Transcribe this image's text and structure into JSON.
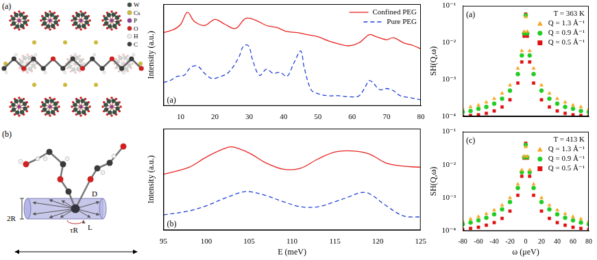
{
  "diagram": {
    "panel_a": {
      "label": "(a)",
      "atoms": [
        "W",
        "Cs",
        "P",
        "O",
        "H",
        "C"
      ]
    },
    "panel_b": {
      "label": "(b)",
      "radius": "2R",
      "diffusion": "D",
      "length": "L",
      "rotation": "τR"
    }
  },
  "chart_data": [
    {
      "type": "line",
      "panel_label": "(a)",
      "y_label": "Intensity (a.u.)",
      "xlim": [
        5,
        80
      ],
      "xticks": [
        10,
        20,
        30,
        40,
        50,
        60,
        70,
        80
      ],
      "ylim": [
        0,
        10
      ],
      "tick_labels": "x",
      "grid": false,
      "legend": "top-right",
      "series": [
        {
          "name": "Confined PEG",
          "color": "#e8221e",
          "line_style": "solid",
          "x": [
            5,
            8,
            10,
            12,
            14,
            17,
            20,
            23,
            26,
            29,
            32,
            35,
            38,
            41,
            44,
            47,
            50,
            53,
            56,
            59,
            62,
            65,
            67,
            70,
            72,
            75,
            78,
            80
          ],
          "values": [
            7.2,
            7.5,
            8.0,
            9.2,
            8.3,
            7.9,
            8.5,
            8.0,
            7.6,
            8.6,
            8.4,
            7.9,
            7.7,
            7.3,
            7.2,
            7.0,
            6.8,
            6.4,
            6.1,
            5.9,
            6.2,
            7.0,
            6.8,
            6.5,
            6.7,
            6.2,
            5.9,
            5.6
          ]
        },
        {
          "name": "Pure PEG",
          "color": "#1f3fd8",
          "line_style": "dashed",
          "x": [
            5,
            7,
            9,
            11,
            13,
            15,
            17,
            19,
            21,
            24,
            27,
            28,
            29,
            30,
            31,
            33,
            35,
            37,
            39,
            41,
            43,
            45,
            46,
            48,
            50,
            53,
            56,
            59,
            62,
            64,
            65,
            66,
            68,
            70,
            72,
            74,
            77,
            80
          ],
          "values": [
            2.3,
            2.5,
            2.9,
            3.0,
            3.8,
            3.9,
            3.2,
            2.7,
            2.8,
            3.3,
            4.8,
            5.7,
            6.0,
            5.8,
            4.5,
            3.0,
            3.6,
            3.2,
            3.3,
            2.9,
            4.2,
            5.4,
            3.8,
            1.6,
            1.2,
            1.0,
            1.0,
            0.9,
            1.0,
            2.0,
            2.5,
            2.3,
            1.6,
            1.7,
            1.5,
            1.0,
            0.8,
            0.6
          ]
        }
      ]
    },
    {
      "type": "line",
      "panel_label": "(b)",
      "y_label": "Intensity (a.u.)",
      "x_label": "E (meV)",
      "xlim": [
        95,
        125
      ],
      "xticks": [
        95,
        100,
        105,
        110,
        115,
        120,
        125
      ],
      "ylim": [
        0,
        10
      ],
      "tick_labels": "x",
      "grid": false,
      "series": [
        {
          "name": "Confined PEG",
          "color": "#e8221e",
          "line_style": "solid",
          "x": [
            95,
            98,
            100,
            102,
            103,
            105,
            107,
            109,
            111,
            113,
            115,
            117,
            119,
            121,
            123,
            125
          ],
          "values": [
            5.5,
            6.2,
            7.2,
            8.0,
            8.2,
            7.6,
            6.6,
            6.0,
            6.1,
            7.0,
            7.7,
            7.8,
            7.5,
            6.6,
            6.3,
            6.2
          ]
        },
        {
          "name": "Pure PEG",
          "color": "#1f3fd8",
          "line_style": "dashed",
          "x": [
            95,
            98,
            100,
            102,
            104,
            105,
            107,
            109,
            111,
            113,
            115,
            117,
            118,
            119,
            121,
            123,
            125
          ],
          "values": [
            1.5,
            1.9,
            2.4,
            3.1,
            3.7,
            3.8,
            3.4,
            2.8,
            2.3,
            2.3,
            2.8,
            3.4,
            3.7,
            3.6,
            2.4,
            1.4,
            1.3
          ]
        }
      ]
    },
    {
      "type": "scatter",
      "panel_label": "(a)",
      "y_label": "SH(Q,ω)",
      "annotation": "T = 363 K",
      "log": "y",
      "xlim": [
        -80,
        80
      ],
      "xticks": [
        -80,
        -60,
        -40,
        -20,
        0,
        20,
        40,
        60,
        80
      ],
      "ylim": [
        0.0001,
        0.1
      ],
      "yticks": [
        {
          "value": 0.0001,
          "label": "10⁻⁴"
        },
        {
          "value": 0.001,
          "label": "10⁻³"
        },
        {
          "value": 0.01,
          "label": "10⁻²"
        },
        {
          "value": 0.1,
          "label": "10⁻¹"
        }
      ],
      "tick_labels": "y",
      "grid": false,
      "legend": "top-right",
      "x": [
        -80,
        -70,
        -60,
        -50,
        -40,
        -30,
        -20,
        -10,
        -5,
        -2,
        0,
        2,
        5,
        10,
        20,
        30,
        40,
        50,
        60,
        70,
        80
      ],
      "series": [
        {
          "name": "Q = 1.3 Å⁻¹",
          "color": "#f5a623",
          "marker": "triangle",
          "values": [
            0.00016,
            0.00018,
            0.0002,
            0.00024,
            0.0003,
            0.00042,
            0.0007,
            0.002,
            0.006,
            0.02,
            0.05,
            0.02,
            0.006,
            0.002,
            0.0007,
            0.00042,
            0.0003,
            0.00024,
            0.0002,
            0.00018,
            0.00016
          ]
        },
        {
          "name": "Q = 0.9 Å⁻¹",
          "color": "#22cc22",
          "marker": "circle",
          "values": [
            0.00013,
            0.00014,
            0.00016,
            0.00018,
            0.00022,
            0.0003,
            0.0005,
            0.0014,
            0.0045,
            0.018,
            0.055,
            0.018,
            0.0045,
            0.0014,
            0.0005,
            0.0003,
            0.00022,
            0.00018,
            0.00016,
            0.00014,
            0.00013
          ]
        },
        {
          "name": "Q = 0.5 Å⁻¹",
          "color": "#e01010",
          "marker": "square",
          "values": [
            0.0001,
            0.000105,
            0.00011,
            0.00012,
            0.00014,
            0.00018,
            0.00028,
            0.0008,
            0.003,
            0.015,
            0.06,
            0.015,
            0.003,
            0.0008,
            0.00028,
            0.00018,
            0.00014,
            0.00012,
            0.00011,
            0.000105,
            0.0001
          ]
        }
      ]
    },
    {
      "type": "scatter",
      "panel_label": "(c)",
      "y_label": "SH(Q,ω)",
      "x_label": "ω (μeV)",
      "annotation": "T = 413 K",
      "log": "y",
      "xlim": [
        -80,
        80
      ],
      "xticks": [
        -80,
        -60,
        -40,
        -20,
        0,
        20,
        40,
        60,
        80
      ],
      "ylim": [
        0.0001,
        0.1
      ],
      "yticks": [
        {
          "value": 0.0001,
          "label": "10⁻⁴"
        },
        {
          "value": 0.001,
          "label": "10⁻³"
        },
        {
          "value": 0.01,
          "label": "10⁻²"
        },
        {
          "value": 0.1,
          "label": "10⁻¹"
        }
      ],
      "tick_labels": true,
      "grid": false,
      "legend": "top-right",
      "x": [
        -80,
        -70,
        -60,
        -50,
        -40,
        -30,
        -20,
        -10,
        -5,
        -2,
        0,
        2,
        5,
        10,
        20,
        30,
        40,
        50,
        60,
        70,
        80
      ],
      "series": [
        {
          "name": "Q = 1.3 Å⁻¹",
          "color": "#f5a623",
          "marker": "triangle",
          "values": [
            0.0002,
            0.00023,
            0.00027,
            0.00033,
            0.00043,
            0.0006,
            0.001,
            0.0026,
            0.007,
            0.018,
            0.035,
            0.018,
            0.007,
            0.0026,
            0.001,
            0.0006,
            0.00043,
            0.00033,
            0.00027,
            0.00023,
            0.0002
          ]
        },
        {
          "name": "Q = 0.9 Å⁻¹",
          "color": "#22cc22",
          "marker": "circle",
          "values": [
            0.00016,
            0.00018,
            0.00021,
            0.00025,
            0.00032,
            0.00045,
            0.00075,
            0.002,
            0.006,
            0.017,
            0.04,
            0.017,
            0.006,
            0.002,
            0.00075,
            0.00045,
            0.00032,
            0.00025,
            0.00021,
            0.00018,
            0.00016
          ]
        },
        {
          "name": "Q = 0.5 Å⁻¹",
          "color": "#e01010",
          "marker": "square",
          "values": [
            0.00011,
            0.00012,
            0.00013,
            0.00015,
            0.00018,
            0.00024,
            0.0004,
            0.0012,
            0.0045,
            0.016,
            0.045,
            0.016,
            0.0045,
            0.0012,
            0.0004,
            0.00024,
            0.00018,
            0.00015,
            0.00013,
            0.00012,
            0.00011
          ]
        }
      ]
    }
  ]
}
